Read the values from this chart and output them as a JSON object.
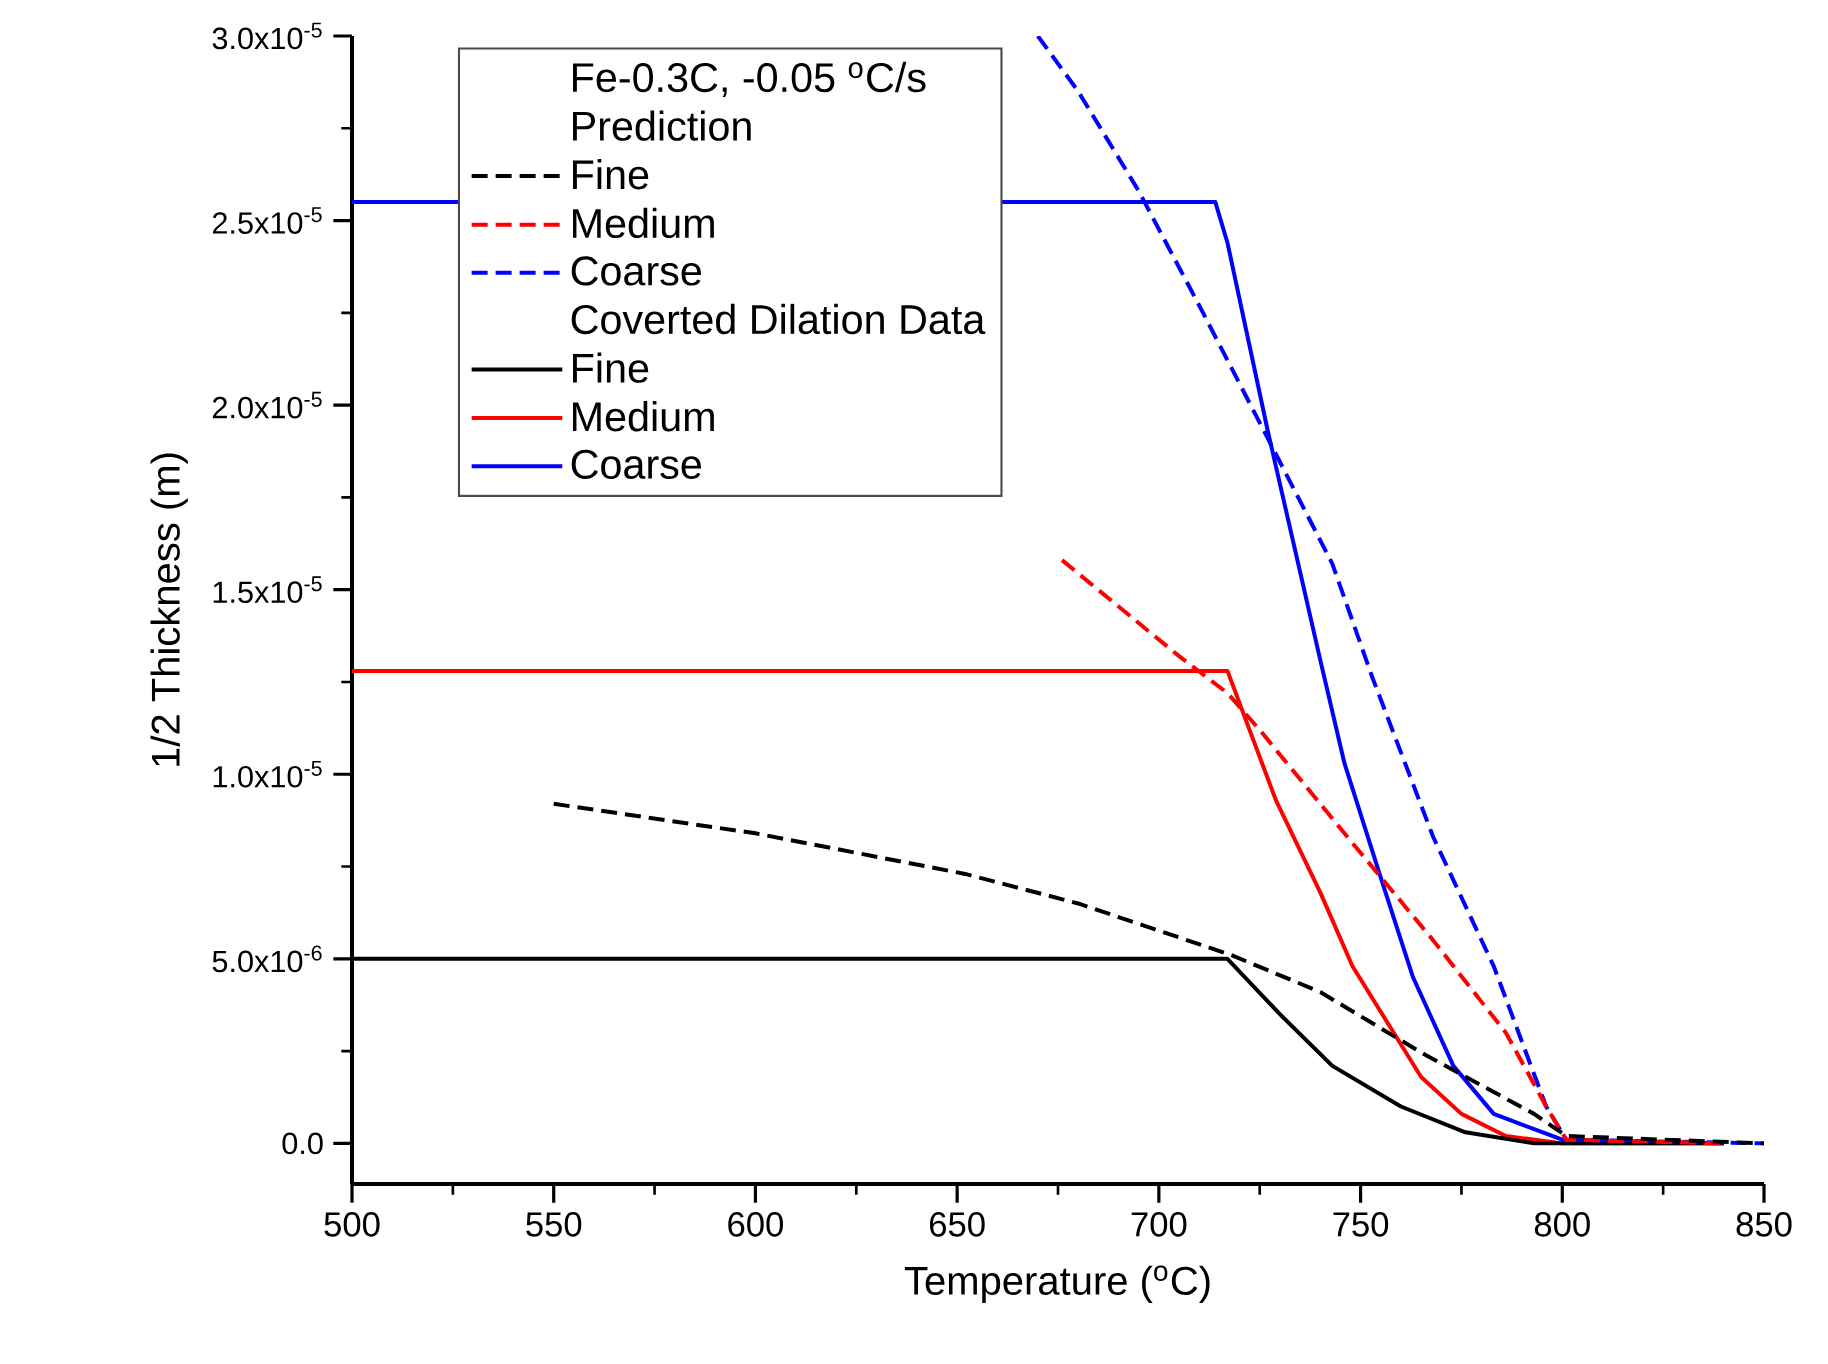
{
  "chart_data": {
    "type": "line",
    "xlabel": "Temperature ($^{o}$C)",
    "ylabel": "1/2 Thickness (m)",
    "legend_title": "Fe-0.3C, -0.05 $^{o}$C/s",
    "annotations": [
      "Prediction",
      "Coverted Dilation Data"
    ],
    "xlim": [
      500,
      850
    ],
    "xticks": [
      500,
      550,
      600,
      650,
      700,
      750,
      800,
      850
    ],
    "ylim": [
      -1.1e-06,
      3e-05
    ],
    "yticks": [
      {
        "value": 0,
        "label": "0.0"
      },
      {
        "value": 5e-06,
        "label": "5.0x10$^{-6}$"
      },
      {
        "value": 1e-05,
        "label": "1.0x10$^{-5}$"
      },
      {
        "value": 1.5e-05,
        "label": "1.5x10$^{-5}$"
      },
      {
        "value": 2e-05,
        "label": "2.0x10$^{-5}$"
      },
      {
        "value": 2.5e-05,
        "label": "2.5x10$^{-5}$"
      },
      {
        "value": 3e-05,
        "label": "3.0x10$^{-5}$"
      }
    ],
    "grid": false,
    "legend": "top left",
    "marker": "none",
    "series": [
      {
        "name": "Fine",
        "color": "#000000",
        "line_style": "dashed",
        "x": [
          550,
          600,
          652,
          680,
          718,
          740,
          766,
          793,
          801,
          850
        ],
        "values": [
          9.2e-06,
          8.4e-06,
          7.3e-06,
          6.5e-06,
          5.1e-06,
          4.1e-06,
          2.4e-06,
          8e-07,
          2e-07,
          0
        ]
      },
      {
        "name": "Medium",
        "color": "#ff0000",
        "line_style": "dashed",
        "x": [
          676,
          705,
          717,
          725,
          746,
          768,
          786,
          796,
          801,
          840
        ],
        "values": [
          1.58e-05,
          1.32e-05,
          1.22e-05,
          1.12e-05,
          8.4e-06,
          5.5e-06,
          3e-06,
          1e-06,
          1e-07,
          0
        ]
      },
      {
        "name": "Coarse",
        "color": "#0000ff",
        "line_style": "dashed",
        "x": [
          670,
          680,
          695,
          710,
          727,
          743,
          753,
          768,
          783,
          796,
          801,
          850
        ],
        "values": [
          3e-05,
          2.85e-05,
          2.58e-05,
          2.27e-05,
          1.91e-05,
          1.57e-05,
          1.26e-05,
          8.3e-06,
          4.8e-06,
          1e-06,
          1e-07,
          0
        ]
      },
      {
        "name": "Fine",
        "color": "#000000",
        "line_style": "solid",
        "x": [
          500,
          717,
          730,
          743,
          760,
          776,
          793,
          840
        ],
        "values": [
          5e-06,
          5e-06,
          3.5e-06,
          2.1e-06,
          1e-06,
          3e-07,
          0,
          0
        ]
      },
      {
        "name": "Medium",
        "color": "#ff0000",
        "line_style": "solid",
        "x": [
          500,
          717,
          729,
          740,
          748,
          765,
          775,
          786,
          800,
          840
        ],
        "values": [
          1.28e-05,
          1.28e-05,
          9.3e-06,
          6.8e-06,
          4.8e-06,
          1.8e-06,
          8e-07,
          2e-07,
          0,
          0
        ]
      },
      {
        "name": "Coarse",
        "color": "#0000ff",
        "line_style": "solid",
        "x": [
          500,
          714,
          717,
          727,
          740,
          746,
          755,
          763,
          773,
          783,
          800,
          840
        ],
        "values": [
          2.55e-05,
          2.55e-05,
          2.44e-05,
          1.93e-05,
          1.31e-05,
          1.03e-05,
          7.2e-06,
          4.5e-06,
          2.1e-06,
          8e-07,
          1e-07,
          0
        ]
      }
    ]
  }
}
